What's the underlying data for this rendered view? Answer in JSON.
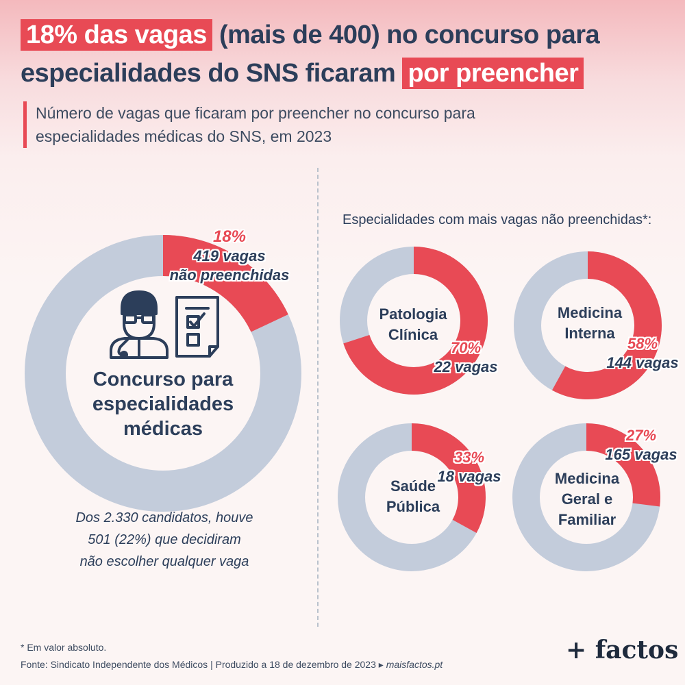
{
  "title": {
    "part1": "18% das vagas",
    "part2": " (mais de 400) no concurso para",
    "part3": "especialidades do SNS ficaram ",
    "part4": "por preencher"
  },
  "subtitle": {
    "line1": "Número de vagas que ficaram por preencher no concurso para",
    "line2": "especialidades médicas do SNS, em 2023"
  },
  "colors": {
    "accent": "#e84a55",
    "remainder": "#c3ccdb",
    "text": "#2c3e5a"
  },
  "main": {
    "center_lines": [
      "Concurso para",
      "especialidades",
      "médicas"
    ],
    "pct": "18%",
    "vagas": "419 vagas",
    "extra": "não preenchidas",
    "icons": [
      "doctor-icon",
      "checklist-icon"
    ],
    "note_lines": [
      "Dos 2.330 candidatos, houve",
      "501 (22%) que decidiram",
      "não escolher qualquer vaga"
    ]
  },
  "right_title": "Especialidades com mais vagas não preenchidas*:",
  "specialties": [
    {
      "lines": [
        "Patologia",
        "Clínica"
      ],
      "pct": "70%",
      "vagas": "22 vagas"
    },
    {
      "lines": [
        "Medicina",
        "Interna"
      ],
      "pct": "58%",
      "vagas": "144 vagas"
    },
    {
      "lines": [
        "Saúde",
        "Pública"
      ],
      "pct": "33%",
      "vagas": "18 vagas"
    },
    {
      "lines": [
        "Medicina",
        "Geral e",
        "Familiar"
      ],
      "pct": "27%",
      "vagas": "165 vagas"
    }
  ],
  "chart_data": [
    {
      "type": "pie",
      "categories": [
        "não preenchidas",
        "preenchidas"
      ],
      "values": [
        18,
        82
      ]
    },
    {
      "type": "pie",
      "title": "Patologia Clínica",
      "categories": [
        "não preenchidas",
        "preenchidas"
      ],
      "values": [
        70,
        30
      ]
    },
    {
      "type": "pie",
      "title": "Medicina Interna",
      "categories": [
        "não preenchidas",
        "preenchidas"
      ],
      "values": [
        58,
        42
      ]
    },
    {
      "type": "pie",
      "title": "Saúde Pública",
      "categories": [
        "não preenchidas",
        "preenchidas"
      ],
      "values": [
        33,
        67
      ]
    },
    {
      "type": "pie",
      "title": "Medicina Geral e Familiar",
      "categories": [
        "não preenchidas",
        "preenchidas"
      ],
      "values": [
        27,
        73
      ]
    }
  ],
  "footer": {
    "note": "* Em valor absoluto.",
    "source": "Fonte: Sindicato Independente dos Médicos | Produzido a 18 de dezembro de 2023 ▸ ",
    "site": "maisfactos.pt",
    "logo": "+ factos"
  }
}
